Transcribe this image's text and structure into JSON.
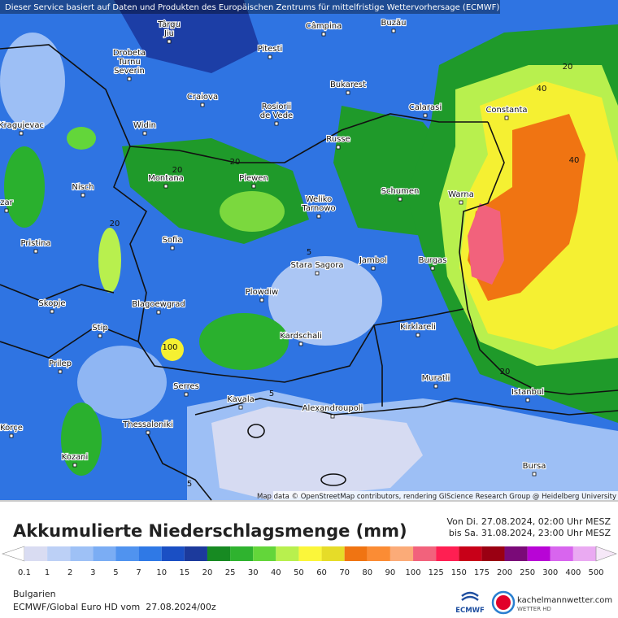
{
  "header": {
    "notice": "Dieser Service basiert auf Daten und Produkten des Europäischen Zentrums für mittelfristige Wettervorhersage (ECMWF)"
  },
  "map": {
    "cities": [
      {
        "lines": [
          "Târgu",
          "Jiu"
        ]
      },
      {
        "lines": [
          "Câmpina"
        ]
      },
      {
        "lines": [
          "Buzău"
        ]
      },
      {
        "lines": [
          "Pitesti"
        ]
      },
      {
        "lines": [
          "Drobeta",
          "Turnu",
          "Severin"
        ]
      },
      {
        "lines": [
          "Bukarest"
        ]
      },
      {
        "lines": [
          "Craiova"
        ]
      },
      {
        "lines": [
          "Rosiorii",
          "de Vede"
        ]
      },
      {
        "lines": [
          "Calarasi"
        ]
      },
      {
        "lines": [
          "Constanta"
        ]
      },
      {
        "lines": [
          "Kragujevac"
        ]
      },
      {
        "lines": [
          "Widin"
        ]
      },
      {
        "lines": [
          "Russe"
        ]
      },
      {
        "lines": [
          "Montana"
        ]
      },
      {
        "lines": [
          "Plewen"
        ]
      },
      {
        "lines": [
          "Schumen"
        ]
      },
      {
        "lines": [
          "Warna"
        ]
      },
      {
        "lines": [
          "Weliko",
          "Tarnowo"
        ]
      },
      {
        "lines": [
          "Nisch"
        ]
      },
      {
        "lines": [
          "Sofia"
        ]
      },
      {
        "lines": [
          "Pristina"
        ]
      },
      {
        "lines": [
          "Stara Sagora"
        ]
      },
      {
        "lines": [
          "Jambol"
        ]
      },
      {
        "lines": [
          "Burgas"
        ]
      },
      {
        "lines": [
          "Plowdiw"
        ]
      },
      {
        "lines": [
          "Skopje"
        ]
      },
      {
        "lines": [
          "Blagoewgrad"
        ]
      },
      {
        "lines": [
          "Stip"
        ]
      },
      {
        "lines": [
          "Kirklareli"
        ]
      },
      {
        "lines": [
          "Kardschali"
        ]
      },
      {
        "lines": [
          "Prilep"
        ]
      },
      {
        "lines": [
          "Muratli"
        ]
      },
      {
        "lines": [
          "Serres"
        ]
      },
      {
        "lines": [
          "Istanbul"
        ]
      },
      {
        "lines": [
          "Kavala"
        ]
      },
      {
        "lines": [
          "Alexandroupoli"
        ]
      },
      {
        "lines": [
          "Thessaloniki"
        ]
      },
      {
        "lines": [
          "Korçe"
        ]
      },
      {
        "lines": [
          "Kozani"
        ]
      },
      {
        "lines": [
          "Bursa"
        ]
      },
      {
        "lines": [
          "zar"
        ]
      }
    ],
    "contour_labels": [
      40,
      40,
      20,
      20,
      20,
      20,
      5,
      100,
      20,
      5,
      5
    ],
    "attribution": "Map data © OpenStreetMap contributors, rendering GIScience Research Group @ Heidelberg University"
  },
  "legend": {
    "title": "Akkumulierte Niederschlagsmenge (mm)",
    "period": [
      "Von Di. 27.08.2024, 02:00 Uhr MESZ",
      "bis Sa. 31.08.2024, 23:00 Uhr MESZ"
    ],
    "levels": [
      {
        "value": 0.1,
        "color": "#d9dcf2"
      },
      {
        "value": 1,
        "color": "#bcd0f6"
      },
      {
        "value": 2,
        "color": "#9ec1f6"
      },
      {
        "value": 3,
        "color": "#7badf4"
      },
      {
        "value": 5,
        "color": "#5093ef"
      },
      {
        "value": 7,
        "color": "#2f79e6"
      },
      {
        "value": 10,
        "color": "#1a4fc4"
      },
      {
        "value": 15,
        "color": "#1c3a9c"
      },
      {
        "value": 20,
        "color": "#178a22"
      },
      {
        "value": 25,
        "color": "#2fb32f"
      },
      {
        "value": 30,
        "color": "#63d63a"
      },
      {
        "value": 40,
        "color": "#b8f04e"
      },
      {
        "value": 50,
        "color": "#fbf63a"
      },
      {
        "value": 60,
        "color": "#e6dc28"
      },
      {
        "value": 70,
        "color": "#f07412"
      },
      {
        "value": 80,
        "color": "#fb8c34"
      },
      {
        "value": 90,
        "color": "#fbab78"
      },
      {
        "value": 100,
        "color": "#f2627c"
      },
      {
        "value": 125,
        "color": "#ff1f52"
      },
      {
        "value": 150,
        "color": "#c80018"
      },
      {
        "value": 175,
        "color": "#9a0012"
      },
      {
        "value": 200,
        "color": "#7a0a78"
      },
      {
        "value": 250,
        "color": "#b804d6"
      },
      {
        "value": 300,
        "color": "#d865ee"
      },
      {
        "value": 400,
        "color": "#eaaaf2"
      },
      {
        "value": 500,
        "color": "#f6e8f8"
      }
    ],
    "arrow_color": "#cccccc"
  },
  "footer": {
    "region": "Bulgarien",
    "model": "ECMWF/Global Euro HD vom  27.08.2024/00z",
    "ecmwf": "ECMWF",
    "site": "kachelmannwetter.com",
    "site_sub": "WETTER HD"
  }
}
